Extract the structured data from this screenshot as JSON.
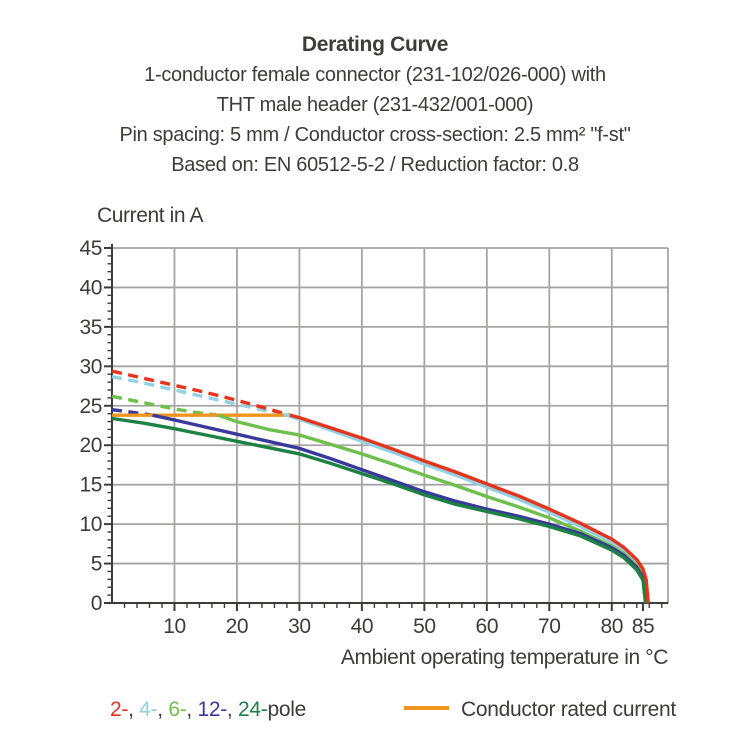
{
  "header": {
    "title": "Derating Curve",
    "subtitle_lines": [
      "1-conductor female connector (231-102/026-000) with",
      "THT male header (231-432/001-000)",
      "Pin spacing: 5 mm / Conductor cross-section: 2.5 mm² \"f-st\"",
      "Based on: EN 60512-5-2 / Reduction factor: 0.8"
    ]
  },
  "colors": {
    "text": "#3c3c3b",
    "axis": "#3c3c3b",
    "grid": "#a5a5a4",
    "pole_2": "#e5341c",
    "pole_4": "#92d0e3",
    "pole_6": "#6ebf4b",
    "pole_12": "#39399b",
    "pole_24": "#1d8044",
    "rated_current": "#f0941f"
  },
  "chart_data": {
    "type": "line",
    "title": "Derating Curve",
    "xlabel": "Ambient operating temperature in °C",
    "ylabel": "Current in A",
    "xlim": [
      0,
      89
    ],
    "ylim": [
      0,
      45
    ],
    "x_major_ticks": [
      10,
      20,
      30,
      40,
      50,
      60,
      70,
      80,
      85
    ],
    "x_gridlines": [
      10,
      20,
      30,
      40,
      50,
      60,
      70,
      80
    ],
    "x_minor_step": 2,
    "y_major_ticks": [
      0,
      5,
      10,
      15,
      20,
      25,
      30,
      35,
      40,
      45
    ],
    "y_gridlines": [
      5,
      10,
      15,
      20,
      25,
      30,
      35,
      40,
      45
    ],
    "y_minor_step": 1,
    "grid": true,
    "dash_rule": "curve drawn dashed where it exceeds the conductor rated current",
    "conductor_rated_current": {
      "label": "Conductor rated current",
      "value_a": 23.8,
      "x_start": 0,
      "x_end": 28.5,
      "color": "#f0941f"
    },
    "series": [
      {
        "name": "4-pole",
        "color": "#92d0e3",
        "dashed_points": [
          [
            0,
            28.7
          ],
          [
            5,
            27.9
          ],
          [
            10,
            27.0
          ],
          [
            15,
            26.1
          ],
          [
            20,
            25.2
          ],
          [
            25,
            24.3
          ],
          [
            27.5,
            23.9
          ]
        ],
        "solid_points": [
          [
            27.5,
            23.9
          ],
          [
            30,
            23.3
          ],
          [
            35,
            21.9
          ],
          [
            40,
            20.5
          ],
          [
            45,
            19.1
          ],
          [
            50,
            17.6
          ],
          [
            55,
            16.2
          ],
          [
            60,
            14.7
          ],
          [
            65,
            13.2
          ],
          [
            70,
            11.5
          ],
          [
            75,
            9.7
          ],
          [
            80,
            7.7
          ],
          [
            82,
            6.6
          ],
          [
            84,
            5.1
          ],
          [
            85,
            3.9
          ],
          [
            85.4,
            2.6
          ],
          [
            85.7,
            0
          ]
        ]
      },
      {
        "name": "6-pole",
        "color": "#6ebf4b",
        "dashed_points": [
          [
            0,
            26.2
          ],
          [
            5,
            25.4
          ],
          [
            10,
            24.6
          ],
          [
            13,
            24.2
          ],
          [
            17,
            23.8
          ]
        ],
        "solid_points": [
          [
            17,
            23.8
          ],
          [
            20,
            23.0
          ],
          [
            25,
            22.0
          ],
          [
            30,
            21.3
          ],
          [
            35,
            20.1
          ],
          [
            40,
            18.9
          ],
          [
            45,
            17.6
          ],
          [
            50,
            16.2
          ],
          [
            55,
            14.9
          ],
          [
            60,
            13.5
          ],
          [
            65,
            12.2
          ],
          [
            70,
            10.8
          ],
          [
            75,
            9.1
          ],
          [
            80,
            7.2
          ],
          [
            82,
            6.2
          ],
          [
            84,
            4.7
          ],
          [
            85,
            3.5
          ],
          [
            85.55,
            0
          ]
        ]
      },
      {
        "name": "12-pole",
        "color": "#39399b",
        "dashed_points": [
          [
            0,
            24.5
          ],
          [
            3,
            24.2
          ],
          [
            6.5,
            23.8
          ]
        ],
        "solid_points": [
          [
            6.5,
            23.8
          ],
          [
            10,
            23.2
          ],
          [
            15,
            22.3
          ],
          [
            20,
            21.4
          ],
          [
            25,
            20.5
          ],
          [
            30,
            19.6
          ],
          [
            35,
            18.3
          ],
          [
            40,
            16.9
          ],
          [
            45,
            15.5
          ],
          [
            50,
            14.1
          ],
          [
            55,
            12.9
          ],
          [
            60,
            11.9
          ],
          [
            65,
            11.0
          ],
          [
            70,
            10.0
          ],
          [
            75,
            8.8
          ],
          [
            80,
            7.0
          ],
          [
            82,
            6.0
          ],
          [
            84,
            4.5
          ],
          [
            85,
            3.2
          ],
          [
            85.45,
            0
          ]
        ]
      },
      {
        "name": "24-pole",
        "color": "#1d8044",
        "dashed_points": [],
        "solid_points": [
          [
            0,
            23.4
          ],
          [
            5,
            22.8
          ],
          [
            10,
            22.1
          ],
          [
            15,
            21.3
          ],
          [
            20,
            20.5
          ],
          [
            25,
            19.7
          ],
          [
            30,
            18.9
          ],
          [
            35,
            17.7
          ],
          [
            40,
            16.4
          ],
          [
            45,
            15.1
          ],
          [
            50,
            13.7
          ],
          [
            55,
            12.5
          ],
          [
            60,
            11.6
          ],
          [
            65,
            10.7
          ],
          [
            70,
            9.7
          ],
          [
            75,
            8.5
          ],
          [
            80,
            6.7
          ],
          [
            82,
            5.7
          ],
          [
            84,
            4.2
          ],
          [
            85,
            2.9
          ],
          [
            85.4,
            0
          ]
        ]
      },
      {
        "name": "2-pole",
        "color": "#e5341c",
        "dashed_points": [
          [
            0,
            29.4
          ],
          [
            5,
            28.5
          ],
          [
            10,
            27.6
          ],
          [
            15,
            26.7
          ],
          [
            20,
            25.7
          ],
          [
            25,
            24.6
          ],
          [
            28.5,
            23.8
          ]
        ],
        "solid_points": [
          [
            28.5,
            23.8
          ],
          [
            30,
            23.5
          ],
          [
            35,
            22.2
          ],
          [
            40,
            20.9
          ],
          [
            45,
            19.5
          ],
          [
            50,
            18.0
          ],
          [
            55,
            16.6
          ],
          [
            60,
            15.1
          ],
          [
            65,
            13.6
          ],
          [
            70,
            11.9
          ],
          [
            75,
            10.1
          ],
          [
            80,
            8.1
          ],
          [
            82,
            7.0
          ],
          [
            84,
            5.5
          ],
          [
            85,
            4.3
          ],
          [
            85.5,
            3.0
          ],
          [
            85.85,
            0
          ]
        ]
      }
    ]
  },
  "legend": {
    "poles": [
      {
        "label": "2-",
        "color": "#e5341c"
      },
      {
        "label": "4-",
        "color": "#92d0e3"
      },
      {
        "label": "6-",
        "color": "#6ebf4b"
      },
      {
        "label": "12-",
        "color": "#39399b"
      },
      {
        "label": "24-",
        "color": "#1d8044"
      }
    ],
    "separator": ", ",
    "suffix": "pole",
    "rated_label": "Conductor rated current"
  }
}
